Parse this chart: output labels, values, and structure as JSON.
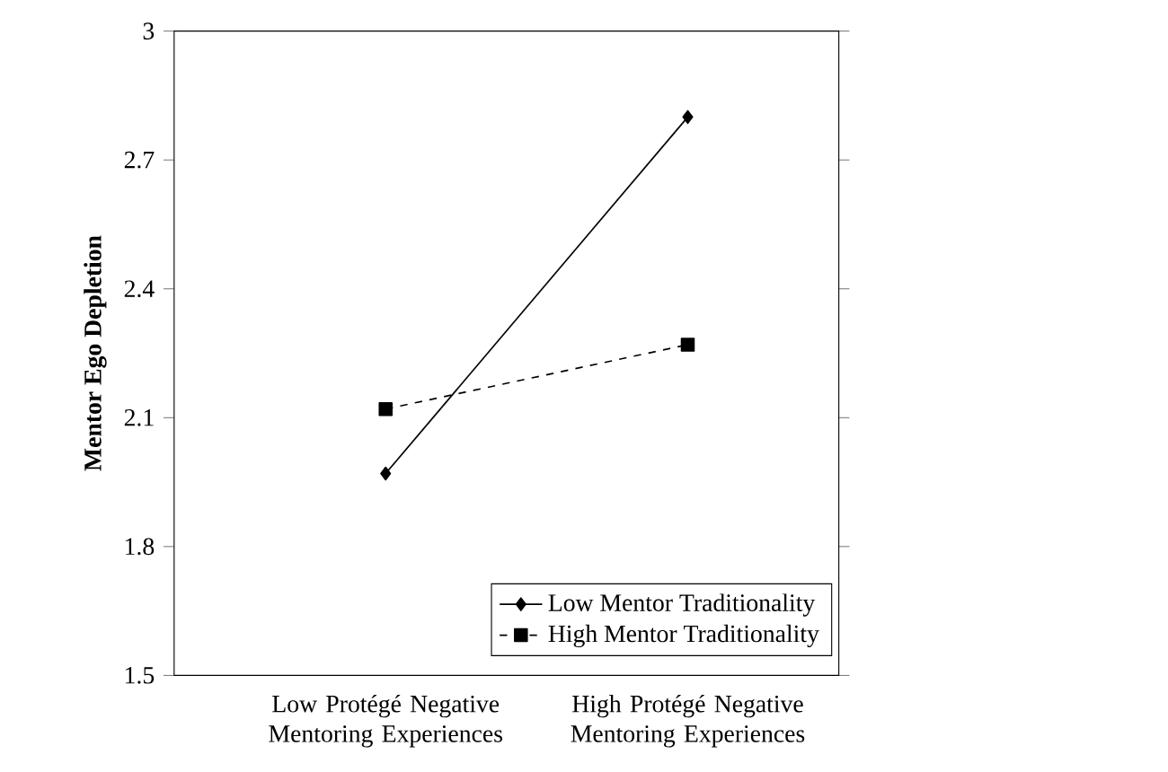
{
  "chart_data": {
    "type": "line",
    "ylabel": "**Mentor Ego Depletion**",
    "categories": [
      "Low Protégé Negative Mentoring Experiences",
      "High Protégé Negative Mentoring Experiences"
    ],
    "series": [
      {
        "name": "Low Mentor Traditionality",
        "color": "#000000",
        "values": [
          1.97,
          2.8
        ],
        "marker": "diamond",
        "line_style": "solid"
      },
      {
        "name": "High Mentor Traditionality",
        "color": "#000000",
        "values": [
          2.12,
          2.27
        ],
        "marker": "square",
        "line_style": "dashed"
      }
    ],
    "ylim": [
      1.5,
      3
    ],
    "yticks": [
      1.5,
      1.8,
      2.1,
      2.4,
      2.7,
      3
    ],
    "grid": false,
    "legend": "bottom right"
  }
}
